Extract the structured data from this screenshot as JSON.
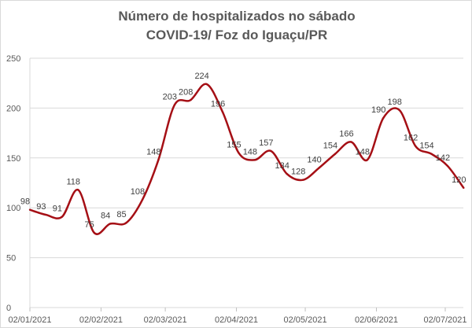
{
  "chart_data": {
    "type": "line",
    "title": "Número de hospitalizados  no sábado",
    "subtitle": "COVID-19/ Foz do Iguaçu/PR",
    "xlabel": "",
    "ylabel": "",
    "ylim": [
      0,
      250
    ],
    "yticks": [
      "0",
      "50",
      "100",
      "150",
      "200",
      "250"
    ],
    "xticks": [
      "02/01/2021",
      "02/02/2021",
      "02/03/2021",
      "02/04/2021",
      "02/05/2021",
      "02/06/2021",
      "02/07/2021"
    ],
    "xtick_days": [
      0,
      31,
      59,
      90,
      120,
      151,
      181
    ],
    "x_interval_days": 7,
    "values": [
      98,
      93,
      91,
      118,
      75,
      84,
      85,
      108,
      148,
      203,
      208,
      224,
      196,
      155,
      148,
      157,
      134,
      128,
      140,
      154,
      166,
      148,
      190,
      198,
      162,
      154,
      142,
      120
    ],
    "line_color": "#a50f15",
    "grid": true
  }
}
